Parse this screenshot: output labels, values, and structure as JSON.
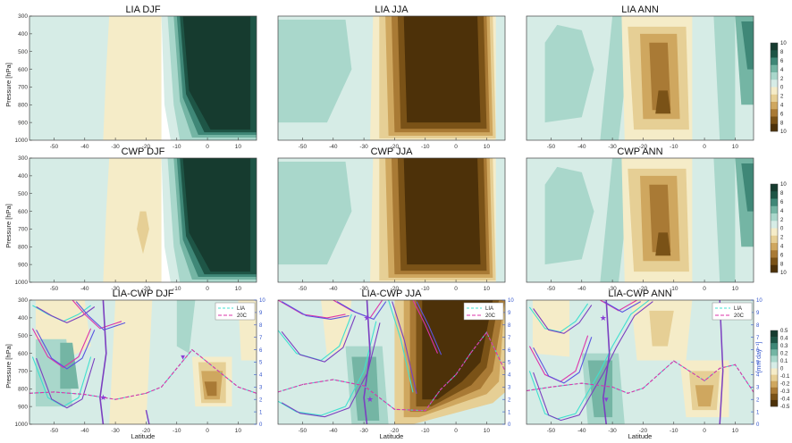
{
  "figure": {
    "y_axis_label": "Pressure [hPa]",
    "x_axis_label": "Latitude",
    "right_axis_label": "[mm day⁻¹]"
  },
  "colors": {
    "brown": [
      "#f5ecc8",
      "#e6cf95",
      "#cfa75f",
      "#a97a35",
      "#7a5217",
      "#4d3109"
    ],
    "green": [
      "#d6ece6",
      "#a9d7cb",
      "#74b5a4",
      "#3f8777",
      "#1e5546",
      "#163b2f"
    ],
    "lia_line": "#40e0d0",
    "c20_line": "#dd33aa",
    "purple_line": "#7b3fc0",
    "blue_line": "#5a55e0",
    "star": "#8a3fd8"
  },
  "colorbars": [
    {
      "ticks": [
        "10",
        "8",
        "6",
        "4",
        "2",
        "0",
        "2",
        "4",
        "6",
        "8",
        "10"
      ]
    },
    {
      "ticks": [
        "10",
        "8",
        "6",
        "4",
        "2",
        "0",
        "2",
        "4",
        "6",
        "8",
        "10"
      ]
    },
    {
      "ticks": [
        "0.5",
        "0.4",
        "0.3",
        "0.2",
        "0.1",
        "0",
        "-0.1",
        "-0.2",
        "-0.3",
        "-0.4",
        "-0.5"
      ]
    }
  ],
  "legend": {
    "lia": "LIA",
    "c20": "20C"
  },
  "chart_data": [
    {
      "type": "heatmap",
      "title": "LIA DJF",
      "xlim": [
        -58,
        16
      ],
      "ylim": [
        1000,
        300
      ],
      "x_ticks": [
        "-50",
        "-40",
        "-30",
        "-20",
        "-10",
        "0",
        "10"
      ],
      "y_ticks": [
        "300",
        "400",
        "500",
        "600",
        "700",
        "800",
        "900",
        "1000"
      ]
    },
    {
      "type": "heatmap",
      "title": "LIA JJA",
      "xlim": [
        -58,
        16
      ],
      "ylim": [
        1000,
        300
      ],
      "x_ticks": [
        "-50",
        "-40",
        "-30",
        "-20",
        "-10",
        "0",
        "10"
      ]
    },
    {
      "type": "heatmap",
      "title": "LIA ANN",
      "xlim": [
        -58,
        16
      ],
      "ylim": [
        1000,
        300
      ],
      "x_ticks": [
        "-50",
        "-40",
        "-30",
        "-20",
        "-10",
        "0",
        "10"
      ]
    },
    {
      "type": "heatmap",
      "title": "CWP DJF",
      "xlim": [
        -58,
        16
      ],
      "ylim": [
        1000,
        300
      ],
      "x_ticks": [
        "-50",
        "-40",
        "-30",
        "-20",
        "-10",
        "0",
        "10"
      ],
      "y_ticks": [
        "300",
        "400",
        "500",
        "600",
        "700",
        "800",
        "900",
        "1000"
      ]
    },
    {
      "type": "heatmap",
      "title": "CWP JJA",
      "xlim": [
        -58,
        16
      ],
      "ylim": [
        1000,
        300
      ],
      "x_ticks": [
        "-50",
        "-40",
        "-30",
        "-20",
        "-10",
        "0",
        "10"
      ]
    },
    {
      "type": "heatmap",
      "title": "CWP ANN",
      "xlim": [
        -58,
        16
      ],
      "ylim": [
        1000,
        300
      ],
      "x_ticks": [
        "-50",
        "-40",
        "-30",
        "-20",
        "-10",
        "0",
        "10"
      ]
    },
    {
      "type": "heatmap",
      "title": "LIA-CWP DJF",
      "xlim": [
        -58,
        16
      ],
      "ylim": [
        1000,
        300
      ],
      "x_ticks": [
        "-50",
        "-40",
        "-30",
        "-20",
        "-10",
        "0",
        "10"
      ],
      "y_ticks": [
        "300",
        "400",
        "500",
        "600",
        "700",
        "800",
        "900",
        "1000"
      ],
      "right_ticks": [
        "0",
        "1",
        "2",
        "3",
        "4",
        "5",
        "6",
        "7",
        "8",
        "9",
        "10"
      ],
      "series": [
        {
          "name": "LIA",
          "x": [
            -58,
            -50,
            -40,
            -30,
            -20,
            -15,
            -10,
            -5,
            0,
            5,
            10,
            16
          ],
          "y": [
            2.5,
            2.6,
            2.4,
            2.0,
            2.5,
            3.0,
            4.5,
            6.0,
            5.0,
            4.0,
            3.0,
            2.5
          ]
        },
        {
          "name": "20C",
          "x": [
            -58,
            -50,
            -40,
            -30,
            -20,
            -15,
            -10,
            -5,
            0,
            5,
            10,
            16
          ],
          "y": [
            2.5,
            2.6,
            2.4,
            2.0,
            2.5,
            3.0,
            4.5,
            6.0,
            5.0,
            4.0,
            3.0,
            2.5
          ]
        }
      ]
    },
    {
      "type": "heatmap",
      "title": "LIA-CWP JJA",
      "xlim": [
        -58,
        16
      ],
      "ylim": [
        1000,
        300
      ],
      "x_ticks": [
        "-50",
        "-40",
        "-30",
        "-20",
        "-10",
        "0",
        "10"
      ],
      "right_ticks": [
        "0",
        "1",
        "2",
        "3",
        "4",
        "5",
        "6",
        "7",
        "8",
        "9",
        "10"
      ],
      "series": [
        {
          "name": "LIA",
          "x": [
            -58,
            -50,
            -40,
            -30,
            -20,
            -10,
            -5,
            0,
            5,
            10,
            16
          ],
          "y": [
            2.6,
            3.2,
            3.6,
            3.1,
            1.2,
            1.1,
            2.8,
            4.0,
            5.8,
            7.4,
            4.3
          ]
        },
        {
          "name": "20C",
          "x": [
            -58,
            -50,
            -40,
            -30,
            -20,
            -10,
            -5,
            0,
            5,
            10,
            16
          ],
          "y": [
            2.6,
            3.2,
            3.6,
            3.1,
            1.2,
            1.1,
            2.8,
            4.0,
            5.8,
            7.4,
            4.3
          ]
        }
      ]
    },
    {
      "type": "heatmap",
      "title": "LIA-CWP ANN",
      "xlim": [
        -58,
        16
      ],
      "ylim": [
        1000,
        300
      ],
      "x_ticks": [
        "-50",
        "-40",
        "-30",
        "-20",
        "-10",
        "0",
        "10"
      ],
      "right_ticks": [
        "0",
        "1",
        "2",
        "3",
        "4",
        "5",
        "6",
        "7",
        "8",
        "9",
        "10"
      ],
      "series": [
        {
          "name": "LIA",
          "x": [
            -58,
            -50,
            -40,
            -30,
            -25,
            -20,
            -15,
            -10,
            -5,
            0,
            5,
            10,
            16
          ],
          "y": [
            2.7,
            3.0,
            3.3,
            3.0,
            2.5,
            2.9,
            4.0,
            5.1,
            4.3,
            3.5,
            4.5,
            4.8,
            2.6
          ]
        },
        {
          "name": "20C",
          "x": [
            -58,
            -50,
            -40,
            -30,
            -25,
            -20,
            -15,
            -10,
            -5,
            0,
            5,
            10,
            16
          ],
          "y": [
            2.7,
            3.0,
            3.3,
            3.0,
            2.5,
            2.9,
            4.0,
            5.1,
            4.3,
            3.5,
            4.5,
            4.8,
            2.6
          ]
        }
      ]
    }
  ]
}
